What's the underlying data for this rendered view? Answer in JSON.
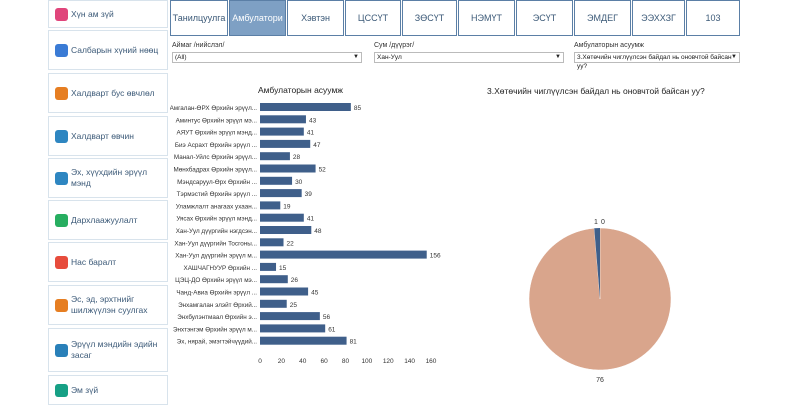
{
  "sidebar": {
    "items": [
      {
        "label": "Хүн ам зүй",
        "icon": "people-icon",
        "color": "#e0457b"
      },
      {
        "label": "Салбарын хүний нөөц",
        "icon": "staff-icon",
        "color": "#3a7bd5"
      },
      {
        "label": "Халдварт бус өвчлөл",
        "icon": "heart-icon",
        "color": "#e67e22"
      },
      {
        "label": "Халдварт өвчин",
        "icon": "virus-icon",
        "color": "#2e86c1"
      },
      {
        "label": "Эх, хүүхдийн эрүүл мэнд",
        "icon": "mother-child-icon",
        "color": "#2e86c1"
      },
      {
        "label": "Дархлаажуулалт",
        "icon": "vaccine-icon",
        "color": "#27ae60"
      },
      {
        "label": "Нас баралт",
        "icon": "death-icon",
        "color": "#e74c3c"
      },
      {
        "label": "Эс, эд, эрхтнийг шилжүүлэн суулгах",
        "icon": "organ-icon",
        "color": "#e67e22"
      },
      {
        "label": "Эрүүл мэндийн эдийн засаг",
        "icon": "finance-icon",
        "color": "#2980b9"
      },
      {
        "label": "Эм зүй",
        "icon": "pharmacy-icon",
        "color": "#16a085"
      }
    ]
  },
  "tabs": [
    "Танилцуулга",
    "Амбулатори",
    "Хэвтэн",
    "ЦССҮТ",
    "ЗӨСҮТ",
    "НЭМҮТ",
    "ЭСҮТ",
    "ЭМДЕГ",
    "ЭЭХХЗГ",
    "103"
  ],
  "active_tab": 1,
  "filters": [
    {
      "label": "Аймаг /нийслэл/",
      "value": "(All)"
    },
    {
      "label": "Сум /дүүрэг/",
      "value": "Хан-Уул"
    },
    {
      "label": "Амбулаторын асуумж",
      "value": "3.Хөтөчийн чиглүүлсэн байдал нь оновчтой байсан уу?"
    }
  ],
  "chart_data": [
    {
      "type": "bar",
      "orientation": "horizontal",
      "title": "Амбулаторын асуумж",
      "categories": [
        "Амгалан-ӨРХ Өрхийн эрүүл...",
        "Аминтус Өрхийн эрүүл мэ...",
        "АЯУТ Өрхийн эрүүл мэнд...",
        "Биэ Асрахт Өрхийн эрүүл ...",
        "Манал-Уйлс Өрхийн эрүүл...",
        "Мөнхбадрах Өрхийн эрүүл...",
        "Мэндсаруул-Өрх Өрхийн ...",
        "Тэрмэстий Өрхийн эрүүл ...",
        "Уламжлалт анагаах ухаан...",
        "Уясах Өрхийн эрүүл мэнд...",
        "Хан-Уул дүүргийн нэгдсэн...",
        "Хан-Уул дүүргийн Тосгоны...",
        "Хан-Уул дүүргийн эрүүл м...",
        "ХАШЧАГНУУР Өрхийн ...",
        "ЦЭЦ-ДО Өрхийн эрүүл мэ...",
        "Чанд-Авиа Өрхийн эрүүл ...",
        "Энхамгалан элэйт Өрхий...",
        "Энхбулэнтмаал Өрхийн э...",
        "Энхтэнгэм Өрхийн эрүүл м...",
        "Эх, нярай, эмэгтэйчүүдий..."
      ],
      "values": [
        85,
        43,
        41,
        47,
        28,
        52,
        30,
        39,
        19,
        41,
        48,
        22,
        156,
        15,
        26,
        45,
        25,
        56,
        61,
        81
      ],
      "xlim": [
        0,
        160
      ],
      "xticks": [
        0,
        20,
        40,
        60,
        80,
        100,
        120,
        140,
        160
      ],
      "bar_color": "#3f5f8a",
      "grid": false
    },
    {
      "type": "pie",
      "title": "3.Хөтөчийн чиглүүлсэн байдал нь оновчтой байсан уу?",
      "slices": [
        {
          "label": "76",
          "value": 76,
          "color": "#d9a58c"
        },
        {
          "label": "1",
          "value": 1,
          "color": "#3f5f8a"
        },
        {
          "label": "0",
          "value": 0,
          "color": "#7ea0c4"
        }
      ]
    }
  ]
}
